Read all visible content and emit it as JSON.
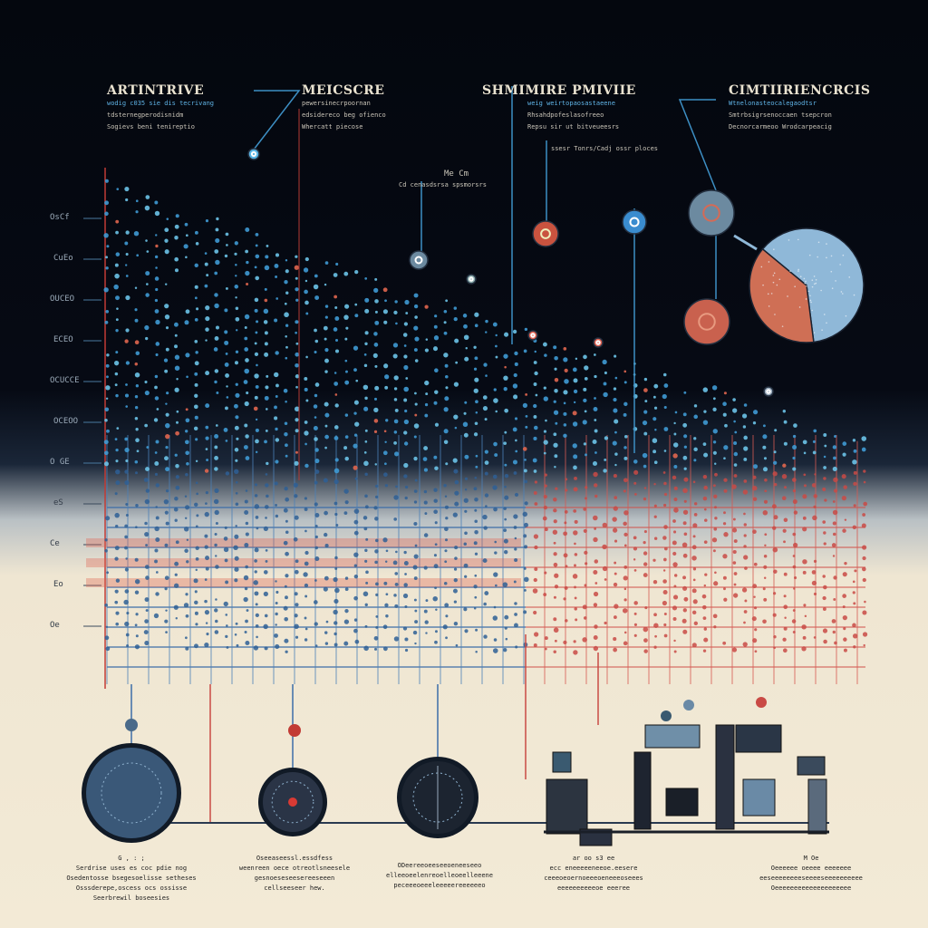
{
  "headers": [
    {
      "title": "ARTINTRIVE",
      "lines": [
        "wodig c035 sie dis tecrivang",
        "tdsternegperodisnidm",
        "Sogievs beni tenireptio"
      ]
    },
    {
      "title": "MEICSCRE",
      "lines": [
        "pewersinecrpoornan",
        "edsidereco beg ofienco",
        "Whercatt piecose"
      ]
    },
    {
      "title": "SHMIMIRE PMIVIIE",
      "lines": [
        "weig weirtopaosastaeene",
        "Rhsahdpofeslasofreeo",
        "Repsu sir ut bitveueesrs"
      ]
    },
    {
      "title": "CIMTIIRIENCRCIS",
      "lines": [
        "Wtnelonasteocalegaodtsr",
        "Smtrbsigrsenoccaen tsepcron",
        "Decnorcarmeoo Wrodcarpeacig"
      ]
    }
  ],
  "notes": [
    "ssesr Tonrs/Cadj ossr ploces",
    "Me Cm",
    "Cd cenasdsrsa spsmorsrs"
  ],
  "axis_labels": [
    "OsCf",
    "CuEo",
    "OUCEO",
    "ECEO",
    "OCUCCE",
    "OCEOO",
    "O GE",
    "eS",
    "Ce",
    "Eo",
    "Oe"
  ],
  "captions": [
    [
      "G  ,  :  ;",
      "Serdrise uses es coc pdie nog",
      "Osedentosse bsegesoelisse setheses",
      "Osssderepe,oscess ocs ossisse",
      "Seerbrewil boseesies"
    ],
    [
      "Oseeaseessl.essdfess",
      "weenreen oece otreotlsneesele",
      "gesnoeseseesereeseeen",
      "cellseeseer hew."
    ],
    [
      "ODeereeoeeseeoeneeseeo",
      "elleeoeelenreoelleoeelleeene",
      "peceeeoeeeleeeeereeeeeeo"
    ],
    [
      "ar oo  s3  ee",
      "ecc eneeeeeneeoe.eesere",
      "ceeeoeoernoeeeoeneeeoseees",
      "eeeeeeeeeeoe eeeree"
    ],
    [
      "M  Oe",
      "Oeeeeee oeeee eeeeeee",
      "eeseeeeeeeeseeeeseeeeeeeeee",
      "Oeeeeeeeeeeeeeeeeeeee"
    ]
  ],
  "pie": {
    "values": [
      62,
      38
    ],
    "colors": [
      "#8fb8d8",
      "#cf6f55"
    ]
  },
  "colors": {
    "blue": "#4aa8dc",
    "red": "#d8413c",
    "dark": "#1d2a3a",
    "cream": "#f3ead6"
  }
}
